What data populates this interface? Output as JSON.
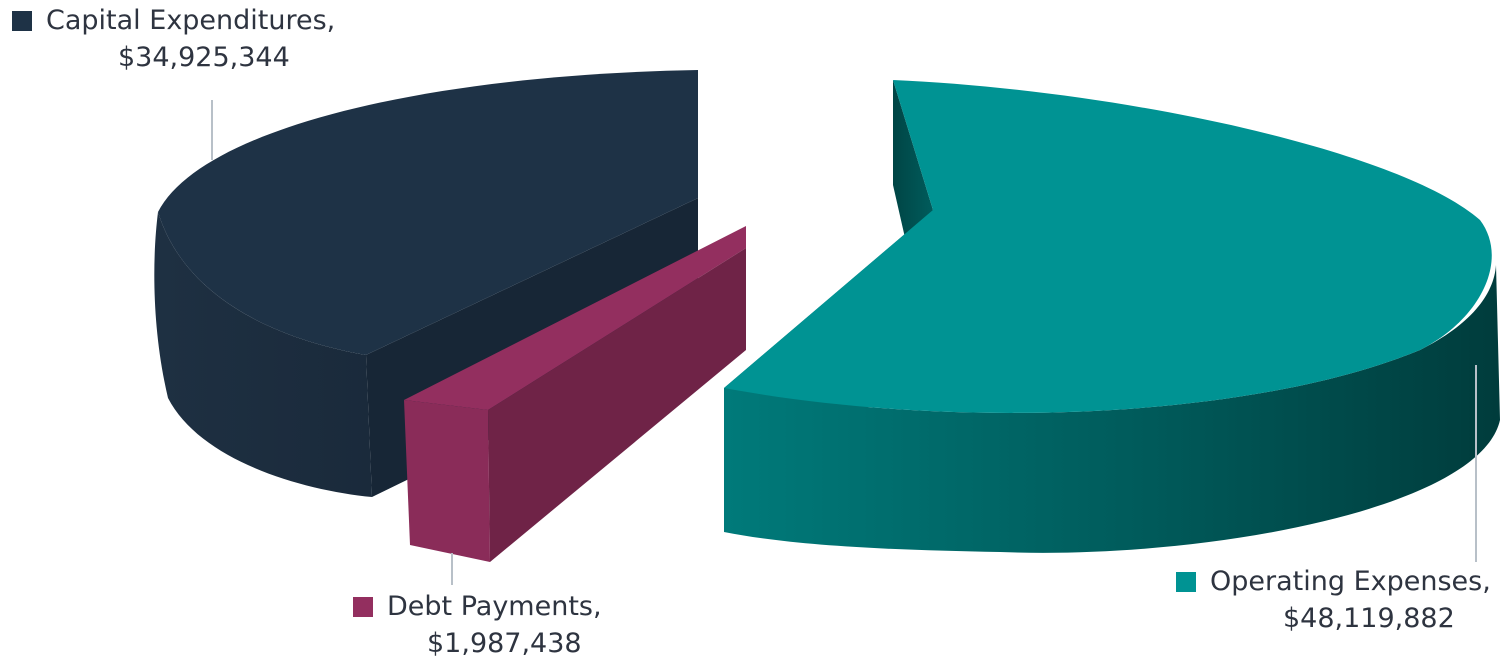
{
  "chart_data": {
    "type": "pie",
    "style": "3d-exploded",
    "title": "",
    "slices": [
      {
        "label": "Capital Expenditures,",
        "value": 34925344,
        "display": "$34,925,344",
        "color": "#1e3246"
      },
      {
        "label": "Debt Payments,",
        "value": 1987438,
        "display": "$1,987,438",
        "color": "#932f5f"
      },
      {
        "label": "Operating Expenses,",
        "value": 48119882,
        "display": "$48,119,882",
        "color": "#009393"
      }
    ]
  }
}
